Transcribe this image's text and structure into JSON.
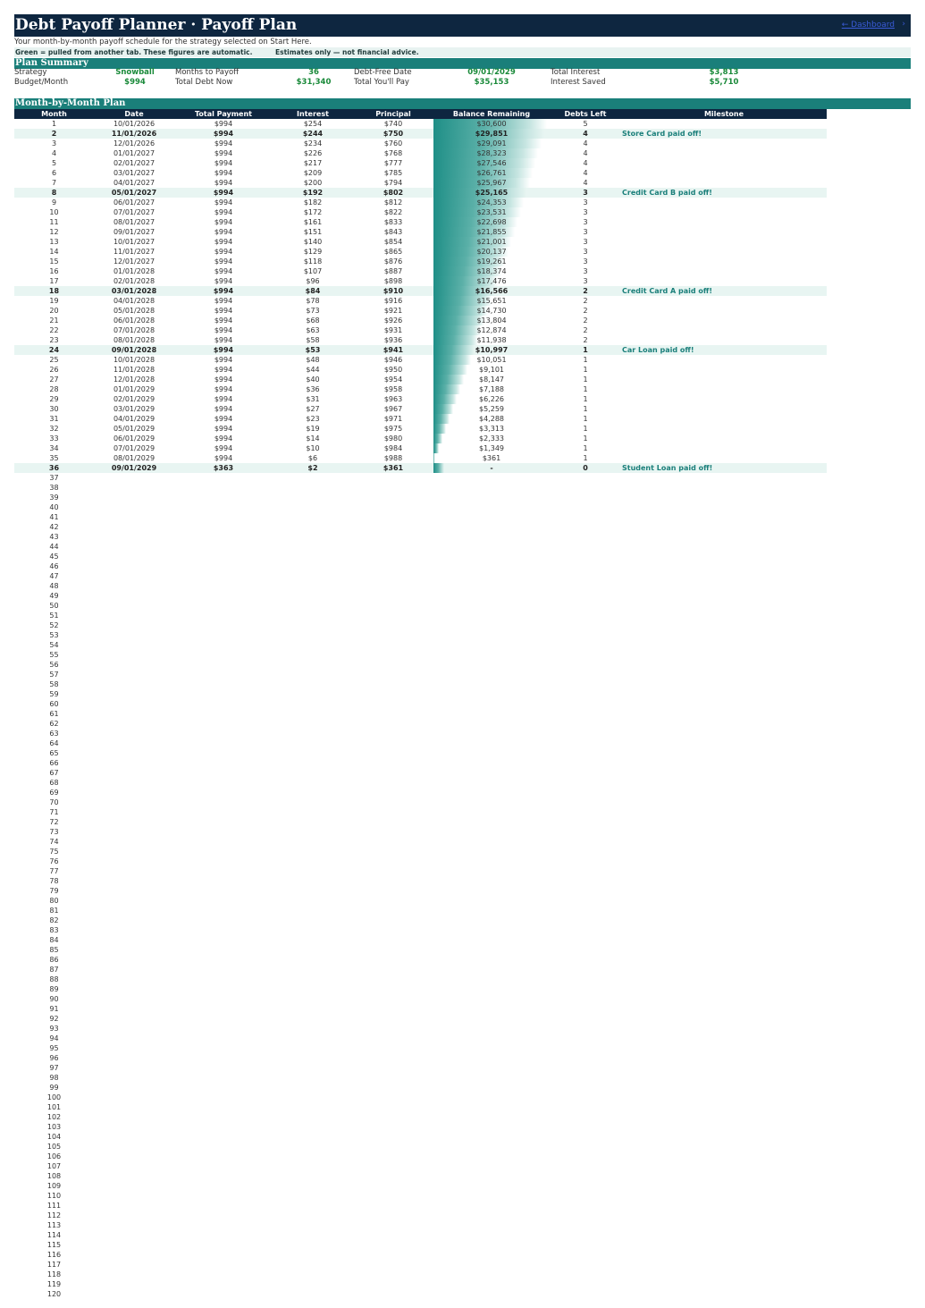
{
  "header": {
    "title": "Debt Payoff Planner  ·  Payoff Plan",
    "link_label": "← Dashboard",
    "link_arrow": "›"
  },
  "subtitle": "Your month-by-month payoff schedule for the strategy selected on Start Here.",
  "notes": {
    "green_note": "Green = pulled from another tab.  These figures are automatic.",
    "estimate_note": "Estimates only — not financial advice."
  },
  "plan_summary": {
    "section_title": "Plan Summary",
    "strategy_label": "Strategy",
    "strategy_value": "Snowball",
    "budget_label": "Budget/Month",
    "budget_value": "$994",
    "months_label": "Months to Payoff",
    "months_value": "36",
    "total_debt_label": "Total Debt Now",
    "total_debt_value": "$31,340",
    "free_date_label": "Debt-Free Date",
    "free_date_value": "09/01/2029",
    "total_pay_label": "Total You'll Pay",
    "total_pay_value": "$35,153",
    "total_interest_label": "Total Interest",
    "total_interest_value": "$3,813",
    "interest_saved_label": "Interest Saved",
    "interest_saved_value": "$5,710"
  },
  "monthly_plan": {
    "section_title": "Month-by-Month Plan",
    "columns": [
      "Month",
      "Date",
      "Total Payment",
      "Interest",
      "Principal",
      "Balance Remaining",
      "Debts Left",
      "Milestone"
    ],
    "max_balance": 31340,
    "rows": [
      {
        "month": "1",
        "date": "10/01/2026",
        "payment": "$994",
        "interest": "$254",
        "principal": "$740",
        "balance": "$30,600",
        "balance_value": 30600,
        "debts": "5",
        "milestone": ""
      },
      {
        "month": "2",
        "date": "11/01/2026",
        "payment": "$994",
        "interest": "$244",
        "principal": "$750",
        "balance": "$29,851",
        "balance_value": 29851,
        "debts": "4",
        "milestone": "Store Card paid off!"
      },
      {
        "month": "3",
        "date": "12/01/2026",
        "payment": "$994",
        "interest": "$234",
        "principal": "$760",
        "balance": "$29,091",
        "balance_value": 29091,
        "debts": "4",
        "milestone": ""
      },
      {
        "month": "4",
        "date": "01/01/2027",
        "payment": "$994",
        "interest": "$226",
        "principal": "$768",
        "balance": "$28,323",
        "balance_value": 28323,
        "debts": "4",
        "milestone": ""
      },
      {
        "month": "5",
        "date": "02/01/2027",
        "payment": "$994",
        "interest": "$217",
        "principal": "$777",
        "balance": "$27,546",
        "balance_value": 27546,
        "debts": "4",
        "milestone": ""
      },
      {
        "month": "6",
        "date": "03/01/2027",
        "payment": "$994",
        "interest": "$209",
        "principal": "$785",
        "balance": "$26,761",
        "balance_value": 26761,
        "debts": "4",
        "milestone": ""
      },
      {
        "month": "7",
        "date": "04/01/2027",
        "payment": "$994",
        "interest": "$200",
        "principal": "$794",
        "balance": "$25,967",
        "balance_value": 25967,
        "debts": "4",
        "milestone": ""
      },
      {
        "month": "8",
        "date": "05/01/2027",
        "payment": "$994",
        "interest": "$192",
        "principal": "$802",
        "balance": "$25,165",
        "balance_value": 25165,
        "debts": "3",
        "milestone": "Credit Card B paid off!"
      },
      {
        "month": "9",
        "date": "06/01/2027",
        "payment": "$994",
        "interest": "$182",
        "principal": "$812",
        "balance": "$24,353",
        "balance_value": 24353,
        "debts": "3",
        "milestone": ""
      },
      {
        "month": "10",
        "date": "07/01/2027",
        "payment": "$994",
        "interest": "$172",
        "principal": "$822",
        "balance": "$23,531",
        "balance_value": 23531,
        "debts": "3",
        "milestone": ""
      },
      {
        "month": "11",
        "date": "08/01/2027",
        "payment": "$994",
        "interest": "$161",
        "principal": "$833",
        "balance": "$22,698",
        "balance_value": 22698,
        "debts": "3",
        "milestone": ""
      },
      {
        "month": "12",
        "date": "09/01/2027",
        "payment": "$994",
        "interest": "$151",
        "principal": "$843",
        "balance": "$21,855",
        "balance_value": 21855,
        "debts": "3",
        "milestone": ""
      },
      {
        "month": "13",
        "date": "10/01/2027",
        "payment": "$994",
        "interest": "$140",
        "principal": "$854",
        "balance": "$21,001",
        "balance_value": 21001,
        "debts": "3",
        "milestone": ""
      },
      {
        "month": "14",
        "date": "11/01/2027",
        "payment": "$994",
        "interest": "$129",
        "principal": "$865",
        "balance": "$20,137",
        "balance_value": 20137,
        "debts": "3",
        "milestone": ""
      },
      {
        "month": "15",
        "date": "12/01/2027",
        "payment": "$994",
        "interest": "$118",
        "principal": "$876",
        "balance": "$19,261",
        "balance_value": 19261,
        "debts": "3",
        "milestone": ""
      },
      {
        "month": "16",
        "date": "01/01/2028",
        "payment": "$994",
        "interest": "$107",
        "principal": "$887",
        "balance": "$18,374",
        "balance_value": 18374,
        "debts": "3",
        "milestone": ""
      },
      {
        "month": "17",
        "date": "02/01/2028",
        "payment": "$994",
        "interest": "$96",
        "principal": "$898",
        "balance": "$17,476",
        "balance_value": 17476,
        "debts": "3",
        "milestone": ""
      },
      {
        "month": "18",
        "date": "03/01/2028",
        "payment": "$994",
        "interest": "$84",
        "principal": "$910",
        "balance": "$16,566",
        "balance_value": 16566,
        "debts": "2",
        "milestone": "Credit Card A paid off!"
      },
      {
        "month": "19",
        "date": "04/01/2028",
        "payment": "$994",
        "interest": "$78",
        "principal": "$916",
        "balance": "$15,651",
        "balance_value": 15651,
        "debts": "2",
        "milestone": ""
      },
      {
        "month": "20",
        "date": "05/01/2028",
        "payment": "$994",
        "interest": "$73",
        "principal": "$921",
        "balance": "$14,730",
        "balance_value": 14730,
        "debts": "2",
        "milestone": ""
      },
      {
        "month": "21",
        "date": "06/01/2028",
        "payment": "$994",
        "interest": "$68",
        "principal": "$926",
        "balance": "$13,804",
        "balance_value": 13804,
        "debts": "2",
        "milestone": ""
      },
      {
        "month": "22",
        "date": "07/01/2028",
        "payment": "$994",
        "interest": "$63",
        "principal": "$931",
        "balance": "$12,874",
        "balance_value": 12874,
        "debts": "2",
        "milestone": ""
      },
      {
        "month": "23",
        "date": "08/01/2028",
        "payment": "$994",
        "interest": "$58",
        "principal": "$936",
        "balance": "$11,938",
        "balance_value": 11938,
        "debts": "2",
        "milestone": ""
      },
      {
        "month": "24",
        "date": "09/01/2028",
        "payment": "$994",
        "interest": "$53",
        "principal": "$941",
        "balance": "$10,997",
        "balance_value": 10997,
        "debts": "1",
        "milestone": "Car Loan paid off!"
      },
      {
        "month": "25",
        "date": "10/01/2028",
        "payment": "$994",
        "interest": "$48",
        "principal": "$946",
        "balance": "$10,051",
        "balance_value": 10051,
        "debts": "1",
        "milestone": ""
      },
      {
        "month": "26",
        "date": "11/01/2028",
        "payment": "$994",
        "interest": "$44",
        "principal": "$950",
        "balance": "$9,101",
        "balance_value": 9101,
        "debts": "1",
        "milestone": ""
      },
      {
        "month": "27",
        "date": "12/01/2028",
        "payment": "$994",
        "interest": "$40",
        "principal": "$954",
        "balance": "$8,147",
        "balance_value": 8147,
        "debts": "1",
        "milestone": ""
      },
      {
        "month": "28",
        "date": "01/01/2029",
        "payment": "$994",
        "interest": "$36",
        "principal": "$958",
        "balance": "$7,188",
        "balance_value": 7188,
        "debts": "1",
        "milestone": ""
      },
      {
        "month": "29",
        "date": "02/01/2029",
        "payment": "$994",
        "interest": "$31",
        "principal": "$963",
        "balance": "$6,226",
        "balance_value": 6226,
        "debts": "1",
        "milestone": ""
      },
      {
        "month": "30",
        "date": "03/01/2029",
        "payment": "$994",
        "interest": "$27",
        "principal": "$967",
        "balance": "$5,259",
        "balance_value": 5259,
        "debts": "1",
        "milestone": ""
      },
      {
        "month": "31",
        "date": "04/01/2029",
        "payment": "$994",
        "interest": "$23",
        "principal": "$971",
        "balance": "$4,288",
        "balance_value": 4288,
        "debts": "1",
        "milestone": ""
      },
      {
        "month": "32",
        "date": "05/01/2029",
        "payment": "$994",
        "interest": "$19",
        "principal": "$975",
        "balance": "$3,313",
        "balance_value": 3313,
        "debts": "1",
        "milestone": ""
      },
      {
        "month": "33",
        "date": "06/01/2029",
        "payment": "$994",
        "interest": "$14",
        "principal": "$980",
        "balance": "$2,333",
        "balance_value": 2333,
        "debts": "1",
        "milestone": ""
      },
      {
        "month": "34",
        "date": "07/01/2029",
        "payment": "$994",
        "interest": "$10",
        "principal": "$984",
        "balance": "$1,349",
        "balance_value": 1349,
        "debts": "1",
        "milestone": ""
      },
      {
        "month": "35",
        "date": "08/01/2029",
        "payment": "$994",
        "interest": "$6",
        "principal": "$988",
        "balance": "$361",
        "balance_value": 361,
        "debts": "1",
        "milestone": ""
      },
      {
        "month": "36",
        "date": "09/01/2029",
        "payment": "$363",
        "interest": "$2",
        "principal": "$361",
        "balance": "-",
        "balance_value": 0,
        "debts": "0",
        "milestone": "Student Loan paid off!"
      }
    ],
    "empty_month_labels": [
      "37",
      "38",
      "39",
      "40",
      "41",
      "42",
      "43",
      "44",
      "45",
      "46",
      "47",
      "48",
      "49",
      "50",
      "51",
      "52",
      "53",
      "54",
      "55",
      "56",
      "57",
      "58",
      "59",
      "60",
      "61",
      "62",
      "63",
      "64",
      "65",
      "66",
      "67",
      "68",
      "69",
      "70",
      "71",
      "72",
      "73",
      "74",
      "75",
      "76",
      "77",
      "78",
      "79",
      "80",
      "81",
      "82",
      "83",
      "84",
      "85",
      "86",
      "87",
      "88",
      "89",
      "90",
      "91",
      "92",
      "93",
      "94",
      "95",
      "96",
      "97",
      "98",
      "99",
      "100",
      "101",
      "102",
      "103",
      "104",
      "105",
      "106",
      "107",
      "108",
      "109",
      "110",
      "111",
      "112",
      "113",
      "114",
      "115",
      "116",
      "117",
      "118",
      "119",
      "120"
    ]
  },
  "colors": {
    "navy": "#0e2640",
    "teal": "#1a7f7a",
    "green_value": "#1a8a3a",
    "milestone_bg": "#e8f5f2"
  }
}
